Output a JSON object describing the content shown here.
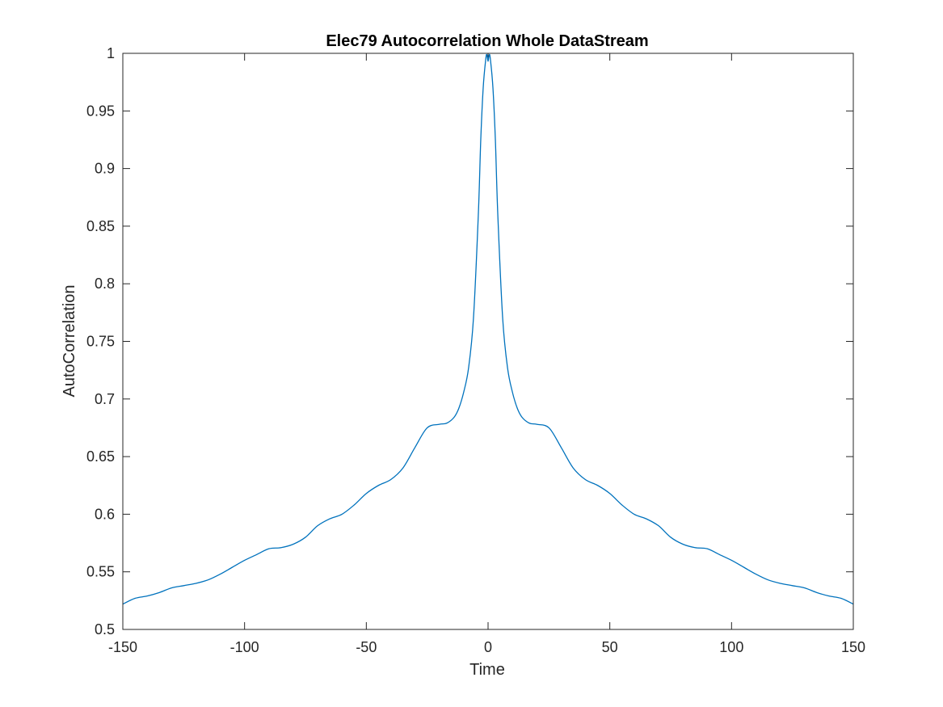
{
  "chart_data": {
    "type": "line",
    "title": "Elec79 Autocorrelation Whole DataStream",
    "xlabel": "Time",
    "ylabel": "AutoCorrelation",
    "xlim": [
      -150,
      150
    ],
    "ylim": [
      0.5,
      1
    ],
    "xticks": [
      -150,
      -100,
      -50,
      0,
      50,
      100,
      150
    ],
    "xtick_labels": [
      "-150",
      "-100",
      "-50",
      "0",
      "50",
      "100",
      "150"
    ],
    "yticks": [
      0.5,
      0.55,
      0.6,
      0.65,
      0.7,
      0.75,
      0.8,
      0.85,
      0.9,
      0.95,
      1
    ],
    "ytick_labels": [
      "0.5",
      "0.55",
      "0.6",
      "0.65",
      "0.7",
      "0.75",
      "0.8",
      "0.85",
      "0.9",
      "0.95",
      "1"
    ],
    "grid": false,
    "line_color": "#0072bd",
    "axis_color": "#262626",
    "series": [
      {
        "x": [
          -150,
          -145,
          -140,
          -135,
          -130,
          -125,
          -120,
          -115,
          -110,
          -105,
          -100,
          -95,
          -90,
          -85,
          -80,
          -75,
          -70,
          -65,
          -60,
          -55,
          -50,
          -45,
          -40,
          -35,
          -30,
          -25,
          -20,
          -17,
          -14,
          -12,
          -10,
          -8,
          -6,
          -4,
          -3,
          -2,
          -1,
          -0.5,
          0,
          0.5,
          1,
          2,
          3,
          4,
          6,
          8,
          10,
          12,
          14,
          17,
          20,
          25,
          30,
          35,
          40,
          45,
          50,
          55,
          60,
          65,
          70,
          75,
          80,
          85,
          90,
          95,
          100,
          105,
          110,
          115,
          120,
          125,
          130,
          135,
          140,
          145,
          150
        ],
        "y": [
          0.522,
          0.527,
          0.529,
          0.532,
          0.536,
          0.538,
          0.54,
          0.543,
          0.548,
          0.554,
          0.56,
          0.565,
          0.57,
          0.571,
          0.574,
          0.58,
          0.59,
          0.596,
          0.6,
          0.608,
          0.618,
          0.625,
          0.63,
          0.64,
          0.658,
          0.675,
          0.678,
          0.679,
          0.684,
          0.692,
          0.706,
          0.727,
          0.77,
          0.86,
          0.925,
          0.97,
          0.994,
          0.999,
          0.993,
          0.999,
          0.994,
          0.97,
          0.925,
          0.86,
          0.77,
          0.727,
          0.706,
          0.692,
          0.684,
          0.679,
          0.678,
          0.675,
          0.658,
          0.64,
          0.63,
          0.625,
          0.618,
          0.608,
          0.6,
          0.596,
          0.59,
          0.58,
          0.574,
          0.571,
          0.57,
          0.565,
          0.56,
          0.554,
          0.548,
          0.543,
          0.54,
          0.538,
          0.536,
          0.532,
          0.529,
          0.527,
          0.522
        ]
      }
    ]
  }
}
